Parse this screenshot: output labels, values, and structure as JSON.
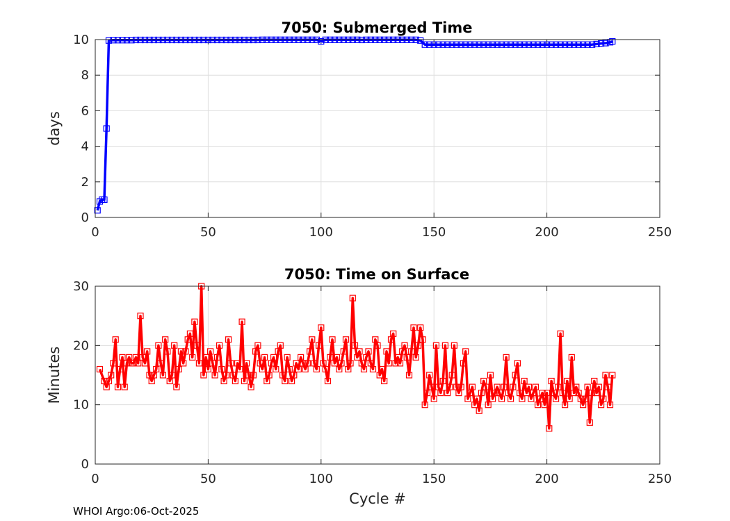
{
  "chart_data": [
    {
      "type": "line",
      "title": "7050: Submerged Time",
      "xlabel": "",
      "ylabel": "days",
      "xlim": [
        0,
        250
      ],
      "ylim": [
        0,
        10
      ],
      "xticks": [
        0,
        50,
        100,
        150,
        200,
        250
      ],
      "yticks": [
        0,
        2,
        4,
        6,
        8,
        10
      ],
      "grid": true,
      "series": [
        {
          "name": "Submerged Time",
          "color": "#0000ff",
          "marker": "square",
          "x": [
            1,
            2,
            3,
            4,
            5,
            6,
            8,
            10,
            12,
            14,
            16,
            18,
            20,
            22,
            24,
            26,
            28,
            30,
            32,
            34,
            36,
            38,
            40,
            42,
            44,
            46,
            48,
            50,
            52,
            54,
            56,
            58,
            60,
            62,
            64,
            66,
            68,
            70,
            72,
            74,
            76,
            78,
            80,
            82,
            84,
            86,
            88,
            90,
            92,
            94,
            96,
            98,
            100,
            102,
            104,
            106,
            108,
            110,
            112,
            114,
            116,
            118,
            120,
            122,
            124,
            126,
            128,
            130,
            132,
            134,
            136,
            138,
            140,
            142,
            144,
            146,
            148,
            150,
            152,
            154,
            156,
            158,
            160,
            162,
            164,
            166,
            168,
            170,
            172,
            174,
            176,
            178,
            180,
            182,
            184,
            186,
            188,
            190,
            192,
            194,
            196,
            198,
            200,
            202,
            204,
            206,
            208,
            210,
            212,
            214,
            216,
            218,
            220,
            222,
            224,
            226,
            228,
            229
          ],
          "values": [
            0.4,
            0.9,
            1.0,
            1.0,
            5.0,
            9.95,
            9.97,
            9.97,
            9.97,
            9.97,
            9.97,
            9.98,
            9.98,
            9.98,
            9.98,
            9.98,
            9.98,
            9.98,
            9.98,
            9.98,
            9.98,
            9.98,
            9.98,
            9.98,
            9.98,
            9.98,
            9.98,
            9.98,
            9.98,
            9.98,
            9.98,
            9.98,
            9.98,
            9.98,
            9.98,
            9.98,
            9.98,
            9.98,
            9.98,
            9.99,
            9.99,
            9.99,
            9.99,
            9.99,
            9.99,
            9.99,
            9.99,
            9.99,
            9.99,
            9.99,
            9.99,
            9.99,
            9.9,
            9.99,
            9.99,
            9.99,
            9.99,
            9.99,
            9.99,
            9.99,
            9.99,
            9.98,
            9.99,
            9.99,
            9.99,
            9.99,
            9.99,
            9.99,
            9.99,
            9.99,
            9.99,
            9.99,
            9.99,
            9.99,
            9.95,
            9.72,
            9.72,
            9.72,
            9.72,
            9.72,
            9.72,
            9.72,
            9.72,
            9.72,
            9.72,
            9.72,
            9.72,
            9.72,
            9.72,
            9.72,
            9.72,
            9.72,
            9.72,
            9.72,
            9.72,
            9.72,
            9.72,
            9.72,
            9.72,
            9.72,
            9.72,
            9.72,
            9.72,
            9.72,
            9.72,
            9.72,
            9.72,
            9.72,
            9.72,
            9.72,
            9.72,
            9.72,
            9.72,
            9.75,
            9.78,
            9.8,
            9.85,
            9.9
          ]
        }
      ]
    },
    {
      "type": "line",
      "title": "7050: Time on Surface",
      "xlabel": "Cycle #",
      "ylabel": "Minutes",
      "xlim": [
        0,
        250
      ],
      "ylim": [
        0,
        30
      ],
      "xticks": [
        0,
        50,
        100,
        150,
        200,
        250
      ],
      "yticks": [
        0,
        10,
        20,
        30
      ],
      "grid": true,
      "series": [
        {
          "name": "Time on Surface",
          "color": "#ff0000",
          "marker": "square",
          "x": [
            2,
            4,
            5,
            6,
            7,
            8,
            9,
            10,
            11,
            12,
            13,
            14,
            15,
            16,
            17,
            18,
            19,
            20,
            21,
            22,
            23,
            24,
            25,
            26,
            27,
            28,
            29,
            30,
            31,
            32,
            33,
            34,
            35,
            36,
            37,
            38,
            39,
            40,
            41,
            42,
            43,
            44,
            45,
            46,
            47,
            48,
            49,
            50,
            51,
            52,
            53,
            54,
            55,
            56,
            57,
            58,
            59,
            60,
            61,
            62,
            63,
            64,
            65,
            66,
            67,
            68,
            69,
            70,
            71,
            72,
            73,
            74,
            75,
            76,
            77,
            78,
            79,
            80,
            81,
            82,
            83,
            84,
            85,
            86,
            87,
            88,
            89,
            90,
            91,
            92,
            93,
            94,
            95,
            96,
            97,
            98,
            99,
            100,
            101,
            102,
            103,
            104,
            105,
            106,
            107,
            108,
            109,
            110,
            111,
            112,
            113,
            114,
            115,
            116,
            117,
            118,
            119,
            120,
            121,
            122,
            123,
            124,
            125,
            126,
            127,
            128,
            129,
            130,
            131,
            132,
            133,
            134,
            135,
            136,
            137,
            138,
            139,
            140,
            141,
            142,
            143,
            144,
            145,
            146,
            147,
            148,
            149,
            150,
            151,
            152,
            153,
            154,
            155,
            156,
            157,
            158,
            159,
            160,
            161,
            162,
            163,
            164,
            165,
            166,
            167,
            168,
            169,
            170,
            171,
            172,
            173,
            174,
            175,
            176,
            177,
            178,
            179,
            180,
            181,
            182,
            183,
            184,
            185,
            186,
            187,
            188,
            189,
            190,
            191,
            192,
            193,
            194,
            195,
            196,
            197,
            198,
            199,
            200,
            201,
            202,
            203,
            204,
            205,
            206,
            207,
            208,
            209,
            210,
            211,
            212,
            213,
            214,
            215,
            216,
            217,
            218,
            219,
            220,
            221,
            222,
            223,
            224,
            225,
            226,
            227,
            228,
            229
          ],
          "values": [
            16,
            14,
            13,
            14,
            15,
            17,
            21,
            13,
            16,
            18,
            13,
            17,
            18,
            17,
            17,
            18,
            17,
            25,
            18,
            17,
            19,
            15,
            14,
            15,
            16,
            20,
            17,
            15,
            21,
            19,
            14,
            15,
            20,
            13,
            16,
            19,
            17,
            19,
            21,
            22,
            18,
            24,
            20,
            17,
            30,
            15,
            18,
            16,
            19,
            17,
            15,
            18,
            20,
            16,
            14,
            15,
            21,
            17,
            15,
            14,
            17,
            16,
            24,
            14,
            17,
            15,
            13,
            15,
            19,
            20,
            17,
            16,
            18,
            14,
            15,
            17,
            18,
            16,
            19,
            20,
            15,
            14,
            18,
            16,
            14,
            15,
            17,
            16,
            18,
            17,
            16,
            17,
            19,
            21,
            17,
            16,
            20,
            23,
            17,
            16,
            14,
            18,
            21,
            17,
            18,
            16,
            17,
            19,
            21,
            16,
            17,
            28,
            20,
            18,
            19,
            17,
            16,
            18,
            19,
            17,
            16,
            21,
            20,
            15,
            16,
            14,
            19,
            17,
            21,
            22,
            17,
            18,
            17,
            19,
            20,
            18,
            15,
            19,
            23,
            18,
            20,
            23,
            21,
            10,
            12,
            15,
            13,
            11,
            20,
            13,
            12,
            14,
            20,
            12,
            13,
            15,
            20,
            13,
            12,
            13,
            17,
            19,
            11,
            12,
            13,
            10,
            11,
            9,
            12,
            14,
            13,
            10,
            15,
            11,
            12,
            13,
            12,
            11,
            13,
            18,
            12,
            11,
            13,
            15,
            17,
            12,
            11,
            14,
            12,
            13,
            11,
            12,
            13,
            10,
            11,
            12,
            10,
            12,
            6,
            14,
            12,
            11,
            13,
            22,
            12,
            10,
            14,
            11,
            18,
            12,
            13,
            12,
            11,
            10,
            11,
            13,
            7,
            12,
            14,
            12,
            13,
            10,
            11,
            15,
            13,
            10,
            15
          ]
        }
      ]
    }
  ],
  "footer": {
    "text": "WHOI Argo:06-Oct-2025"
  }
}
